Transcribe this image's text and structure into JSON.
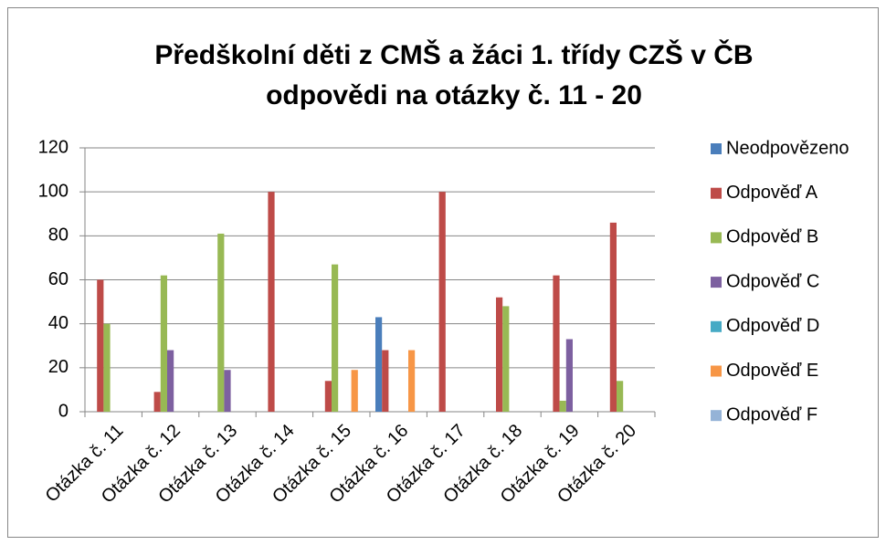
{
  "chart_data": {
    "type": "bar",
    "title": [
      "Předškolní děti z CMŠ a žáci 1. třídy CZŠ v ČB",
      "odpovědi na otázky č. 11 - 20"
    ],
    "categories": [
      "Otázka č. 11",
      "Otázka č. 12",
      "Otázka č. 13",
      "Otázka č. 14",
      "Otázka č. 15",
      "Otázka č. 16",
      "Otázka č. 17",
      "Otázka č. 18",
      "Otázka č. 19",
      "Otázka č. 20"
    ],
    "series": [
      {
        "name": "Neodpovězeno",
        "color": "#4a7ebb",
        "values": [
          0,
          0,
          0,
          0,
          0,
          43,
          0,
          0,
          0,
          0
        ]
      },
      {
        "name": "Odpověď A",
        "color": "#be4b48",
        "values": [
          60,
          9,
          0,
          100,
          14,
          28,
          100,
          52,
          62,
          86
        ]
      },
      {
        "name": "Odpověď B",
        "color": "#98b954",
        "values": [
          40,
          62,
          81,
          0,
          67,
          0,
          0,
          48,
          5,
          14
        ]
      },
      {
        "name": "Odpověď C",
        "color": "#7d60a0",
        "values": [
          0,
          28,
          19,
          0,
          0,
          0,
          0,
          0,
          33,
          0
        ]
      },
      {
        "name": "Odpověď D",
        "color": "#46aac5",
        "values": [
          0,
          0,
          0,
          0,
          0,
          0,
          0,
          0,
          0,
          0
        ]
      },
      {
        "name": "Odpověď E",
        "color": "#f79646",
        "values": [
          0,
          0,
          0,
          0,
          19,
          28,
          0,
          0,
          0,
          0
        ]
      },
      {
        "name": "Odpověď F",
        "color": "#95b3d7",
        "values": [
          0,
          0,
          0,
          0,
          0,
          0,
          0,
          0,
          0,
          0
        ]
      }
    ],
    "ylim": [
      0,
      120
    ],
    "yticks": [
      0,
      20,
      40,
      60,
      80,
      100,
      120
    ],
    "grid": true,
    "legend": "right"
  }
}
